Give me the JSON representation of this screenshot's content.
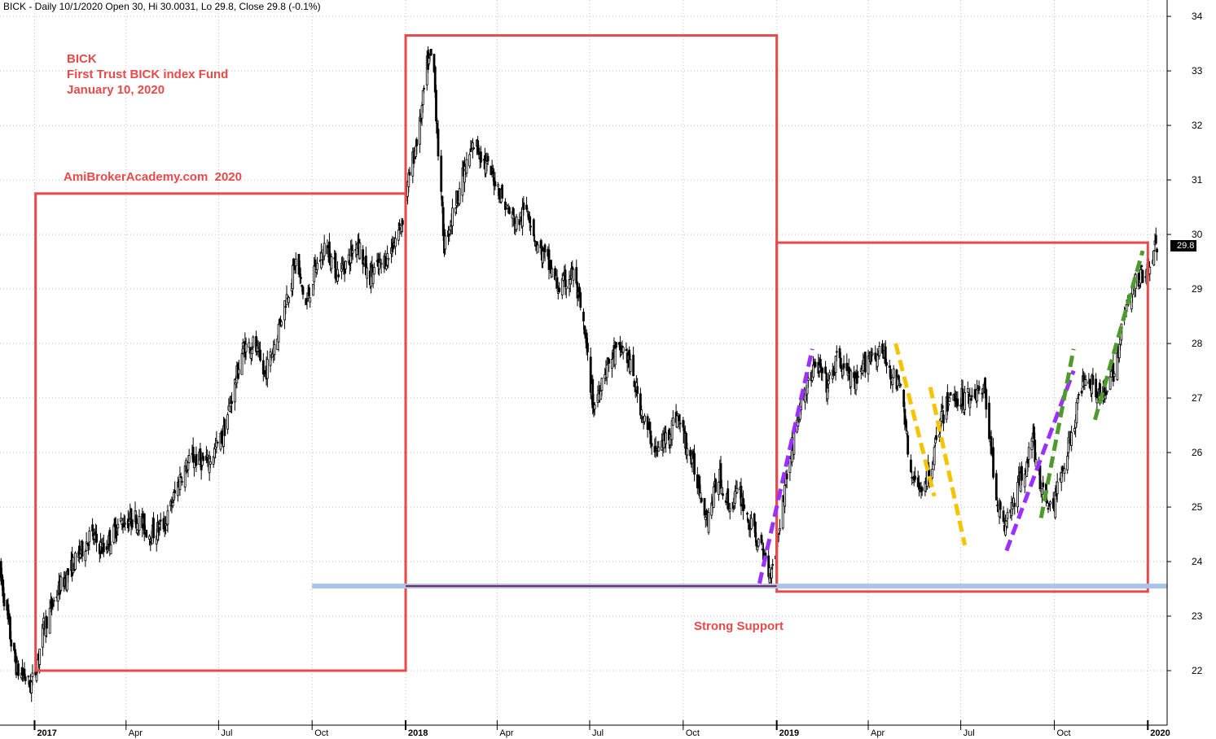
{
  "header": {
    "text": "BICK - Daily 10/1/2020 Open 30, Hi 30.0031, Lo 29.8, Close 29.8 (-0.1%)"
  },
  "annotations": {
    "ticker": "BICK",
    "fund_name": "First Trust BICK index Fund",
    "date": "January 10, 2020",
    "watermark": "AmiBrokerAcademy.com  2020",
    "support_label": "Strong Support"
  },
  "last_price_label": "29.8",
  "colors": {
    "box": "#e84a4a",
    "support_line": "#a9c4e8",
    "purple_trend": "#9b30ff",
    "yellow_trend": "#f5c400",
    "green_trend": "#4f9a2c",
    "candle": "#000000",
    "grid": "#c0c0c0"
  },
  "chart_data": {
    "type": "candlestick",
    "title": "BICK - Daily 10/1/2020 Open 30, Hi 30.0031, Lo 29.8, Close 29.8 (-0.1%)",
    "last_close": 29.8,
    "ylim": [
      21,
      34.3
    ],
    "y_ticks": [
      22,
      23,
      24,
      25,
      26,
      27,
      28,
      29,
      30,
      31,
      32,
      33,
      34
    ],
    "x_range": [
      "2016-11-28",
      "2020-01-20"
    ],
    "x_ticks": [
      {
        "date": "2017-01-01",
        "label": "2017",
        "bold": true
      },
      {
        "date": "2017-04-01",
        "label": "Apr",
        "bold": false
      },
      {
        "date": "2017-07-01",
        "label": "Jul",
        "bold": false
      },
      {
        "date": "2017-10-01",
        "label": "Oct",
        "bold": false
      },
      {
        "date": "2018-01-01",
        "label": "2018",
        "bold": true
      },
      {
        "date": "2018-04-01",
        "label": "Apr",
        "bold": false
      },
      {
        "date": "2018-07-01",
        "label": "Jul",
        "bold": false
      },
      {
        "date": "2018-10-01",
        "label": "Oct",
        "bold": false
      },
      {
        "date": "2019-01-01",
        "label": "2019",
        "bold": true
      },
      {
        "date": "2019-04-01",
        "label": "Apr",
        "bold": false
      },
      {
        "date": "2019-07-01",
        "label": "Jul",
        "bold": false
      },
      {
        "date": "2019-10-01",
        "label": "Oct",
        "bold": false
      },
      {
        "date": "2020-01-01",
        "label": "2020",
        "bold": true
      }
    ],
    "price_path": [
      [
        "2016-11-28",
        23.8
      ],
      [
        "2016-12-05",
        23.0
      ],
      [
        "2016-12-10",
        22.4
      ],
      [
        "2016-12-15",
        22.0
      ],
      [
        "2016-12-22",
        21.9
      ],
      [
        "2016-12-28",
        21.7
      ],
      [
        "2017-01-02",
        22.0
      ],
      [
        "2017-01-10",
        22.8
      ],
      [
        "2017-01-25",
        23.5
      ],
      [
        "2017-02-10",
        24.0
      ],
      [
        "2017-02-25",
        24.5
      ],
      [
        "2017-03-10",
        24.2
      ],
      [
        "2017-03-25",
        24.7
      ],
      [
        "2017-04-10",
        24.8
      ],
      [
        "2017-04-25",
        24.5
      ],
      [
        "2017-05-10",
        24.7
      ],
      [
        "2017-05-25",
        25.6
      ],
      [
        "2017-06-05",
        25.9
      ],
      [
        "2017-06-20",
        25.8
      ],
      [
        "2017-07-05",
        26.3
      ],
      [
        "2017-07-15",
        27.1
      ],
      [
        "2017-07-25",
        27.9
      ],
      [
        "2017-08-05",
        28.0
      ],
      [
        "2017-08-15",
        27.4
      ],
      [
        "2017-08-25",
        28.0
      ],
      [
        "2017-09-05",
        28.8
      ],
      [
        "2017-09-15",
        29.5
      ],
      [
        "2017-09-25",
        28.7
      ],
      [
        "2017-10-05",
        29.4
      ],
      [
        "2017-10-15",
        29.8
      ],
      [
        "2017-10-25",
        29.3
      ],
      [
        "2017-11-05",
        29.5
      ],
      [
        "2017-11-15",
        29.9
      ],
      [
        "2017-11-25",
        29.2
      ],
      [
        "2017-12-05",
        29.4
      ],
      [
        "2017-12-15",
        29.6
      ],
      [
        "2017-12-28",
        30.2
      ],
      [
        "2018-01-05",
        31.1
      ],
      [
        "2018-01-15",
        32.0
      ],
      [
        "2018-01-22",
        33.1
      ],
      [
        "2018-01-28",
        33.3
      ],
      [
        "2018-02-03",
        31.2
      ],
      [
        "2018-02-08",
        29.8
      ],
      [
        "2018-02-15",
        30.3
      ],
      [
        "2018-02-25",
        31.0
      ],
      [
        "2018-03-10",
        31.7
      ],
      [
        "2018-03-20",
        31.3
      ],
      [
        "2018-03-30",
        31.0
      ],
      [
        "2018-04-10",
        30.5
      ],
      [
        "2018-04-20",
        30.2
      ],
      [
        "2018-05-01",
        30.5
      ],
      [
        "2018-05-10",
        29.8
      ],
      [
        "2018-05-20",
        29.5
      ],
      [
        "2018-06-01",
        29.0
      ],
      [
        "2018-06-15",
        29.3
      ],
      [
        "2018-06-25",
        28.3
      ],
      [
        "2018-07-05",
        26.8
      ],
      [
        "2018-07-15",
        27.5
      ],
      [
        "2018-07-25",
        27.8
      ],
      [
        "2018-08-05",
        27.9
      ],
      [
        "2018-08-15",
        27.2
      ],
      [
        "2018-08-25",
        26.5
      ],
      [
        "2018-09-05",
        26.0
      ],
      [
        "2018-09-15",
        26.3
      ],
      [
        "2018-09-25",
        26.7
      ],
      [
        "2018-10-05",
        26.1
      ],
      [
        "2018-10-15",
        25.5
      ],
      [
        "2018-10-25",
        24.8
      ],
      [
        "2018-11-05",
        25.6
      ],
      [
        "2018-11-15",
        25.0
      ],
      [
        "2018-11-25",
        25.3
      ],
      [
        "2018-12-05",
        24.7
      ],
      [
        "2018-12-15",
        24.3
      ],
      [
        "2018-12-25",
        23.8
      ],
      [
        "2018-12-31",
        24.2
      ],
      [
        "2019-01-10",
        25.5
      ],
      [
        "2019-01-20",
        26.5
      ],
      [
        "2019-01-31",
        27.3
      ],
      [
        "2019-02-10",
        27.6
      ],
      [
        "2019-02-20",
        27.2
      ],
      [
        "2019-03-01",
        27.7
      ],
      [
        "2019-03-10",
        27.5
      ],
      [
        "2019-03-20",
        27.2
      ],
      [
        "2019-04-01",
        27.8
      ],
      [
        "2019-04-15",
        27.8
      ],
      [
        "2019-04-25",
        27.4
      ],
      [
        "2019-05-05",
        27.1
      ],
      [
        "2019-05-12",
        25.6
      ],
      [
        "2019-05-20",
        25.3
      ],
      [
        "2019-05-31",
        25.6
      ],
      [
        "2019-06-10",
        26.5
      ],
      [
        "2019-06-20",
        27.0
      ],
      [
        "2019-07-01",
        27.0
      ],
      [
        "2019-07-15",
        27.1
      ],
      [
        "2019-07-25",
        27.1
      ],
      [
        "2019-08-05",
        25.2
      ],
      [
        "2019-08-12",
        24.6
      ],
      [
        "2019-08-20",
        25.0
      ],
      [
        "2019-09-01",
        25.7
      ],
      [
        "2019-09-10",
        26.2
      ],
      [
        "2019-09-20",
        25.2
      ],
      [
        "2019-09-30",
        25.0
      ],
      [
        "2019-10-10",
        25.8
      ],
      [
        "2019-10-20",
        26.5
      ],
      [
        "2019-10-31",
        27.5
      ],
      [
        "2019-11-10",
        27.2
      ],
      [
        "2019-11-20",
        27.0
      ],
      [
        "2019-11-30",
        27.6
      ],
      [
        "2019-12-10",
        28.6
      ],
      [
        "2019-12-20",
        29.1
      ],
      [
        "2019-12-31",
        29.4
      ],
      [
        "2020-01-06",
        29.7
      ],
      [
        "2020-01-10",
        29.8
      ]
    ],
    "overlays": {
      "boxes": [
        {
          "x": [
            "2017-01-02",
            "2018-01-01"
          ],
          "y": [
            22.0,
            30.75
          ]
        },
        {
          "x": [
            "2018-01-01",
            "2019-01-01"
          ],
          "y": [
            23.55,
            33.65
          ]
        },
        {
          "x": [
            "2019-01-01",
            "2020-01-01"
          ],
          "y": [
            23.45,
            29.85
          ]
        }
      ],
      "support_level": {
        "y": 23.55,
        "x": [
          "2017-10-01",
          "2020-01-20"
        ]
      },
      "trend_lines": [
        {
          "color": "purple",
          "from": [
            "2018-12-15",
            23.6
          ],
          "to": [
            "2019-02-05",
            27.9
          ]
        },
        {
          "color": "purple",
          "from": [
            "2019-08-15",
            24.2
          ],
          "to": [
            "2019-10-20",
            27.5
          ]
        },
        {
          "color": "yellow",
          "from": [
            "2019-04-28",
            28.0
          ],
          "to": [
            "2019-06-05",
            25.2
          ]
        },
        {
          "color": "yellow",
          "from": [
            "2019-06-01",
            27.2
          ],
          "to": [
            "2019-07-05",
            24.3
          ]
        },
        {
          "color": "green",
          "from": [
            "2019-09-18",
            24.8
          ],
          "to": [
            "2019-10-20",
            27.9
          ]
        },
        {
          "color": "green",
          "from": [
            "2019-11-10",
            26.6
          ],
          "to": [
            "2019-12-27",
            29.7
          ]
        }
      ]
    }
  }
}
